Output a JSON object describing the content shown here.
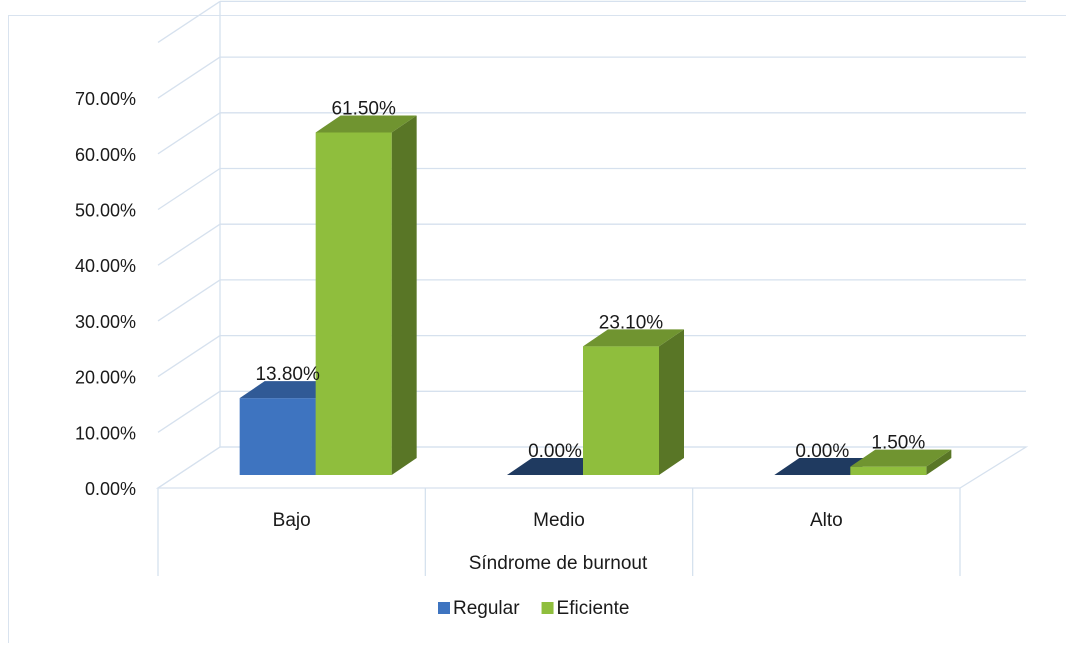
{
  "chart_data": {
    "type": "bar",
    "categories": [
      "Bajo",
      "Medio",
      "Alto"
    ],
    "series": [
      {
        "name": "Regular",
        "values": [
          13.8,
          0.0,
          0.0
        ],
        "labels": [
          "13.80%",
          "0.00%",
          "0.00%"
        ],
        "color": "#3e74c0"
      },
      {
        "name": "Eficiente",
        "values": [
          61.5,
          23.1,
          1.5
        ],
        "labels": [
          "61.50%",
          "23.10%",
          "1.50%"
        ],
        "color": "#8fbe3d"
      }
    ],
    "y_ticks": [
      "0.00%",
      "10.00%",
      "20.00%",
      "30.00%",
      "40.00%",
      "50.00%",
      "60.00%",
      "70.00%"
    ],
    "ylim": [
      0,
      70
    ],
    "xlabel": "Síndrome de burnout",
    "legend_position": "bottom",
    "grid": true,
    "style": "3d-clustered-column"
  }
}
